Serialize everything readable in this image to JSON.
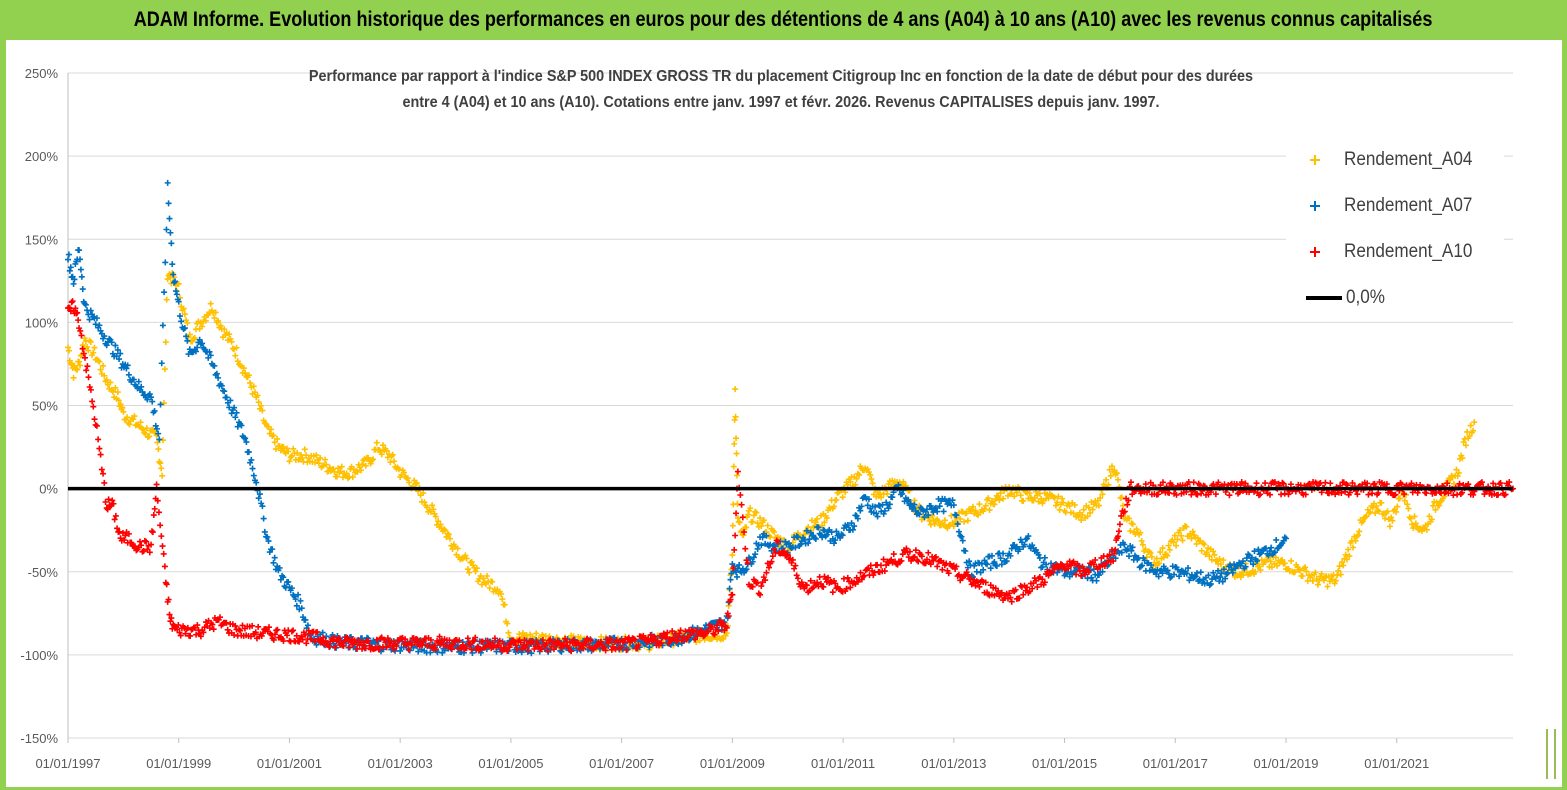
{
  "banner": {
    "title": "ADAM Informe. Evolution historique des performances en euros pour des détentions de 4 ans (A04) à 10 ans (A10) avec les revenus connus capitalisés",
    "background": "#92d050"
  },
  "chart_data": {
    "type": "scatter",
    "title_line1": "Performance par rapport à l'indice S&P 500 INDEX GROSS TR  du placement Citigroup Inc en fonction de la date de début pour des durées",
    "title_line2": "entre 4 (A04) et 10 ans (A10).  Cotations entre janv. 1997 et févr. 2026. Revenus  CAPITALISES depuis janv. 1997.",
    "ylim": [
      -150,
      250
    ],
    "y_ticks": [
      "250%",
      "200%",
      "150%",
      "100%",
      "50%",
      "0%",
      "-50%",
      "-100%",
      "-150%"
    ],
    "y_tick_values": [
      250,
      200,
      150,
      100,
      50,
      0,
      -50,
      -100,
      -150
    ],
    "x_range": [
      1997.0,
      2023.1
    ],
    "x_ticks": [
      "01/01/1997",
      "01/01/1999",
      "01/01/2001",
      "01/01/2003",
      "01/01/2005",
      "01/01/2007",
      "01/01/2009",
      "01/01/2011",
      "01/01/2013",
      "01/01/2015",
      "01/01/2017",
      "01/01/2019",
      "01/01/2021"
    ],
    "x_tick_values": [
      1997,
      1999,
      2001,
      2003,
      2005,
      2007,
      2009,
      2011,
      2013,
      2015,
      2017,
      2019,
      2021
    ],
    "grid": "horizontal",
    "legend_position": "top-right",
    "series": [
      {
        "name": "Rendement_A04",
        "color": "#ffc000",
        "x": [
          1997.0,
          1997.1,
          1997.2,
          1997.3,
          1997.5,
          1997.7,
          1997.9,
          1998.0,
          1998.2,
          1998.4,
          1998.6,
          1998.7,
          1998.8,
          1998.9,
          1999.0,
          1999.2,
          1999.4,
          1999.6,
          1999.8,
          2000.0,
          2000.2,
          2000.4,
          2000.6,
          2000.8,
          2001.0,
          2001.3,
          2001.6,
          2001.9,
          2002.1,
          2002.4,
          2002.6,
          2002.8,
          2003.0,
          2003.3,
          2003.6,
          2003.9,
          2004.2,
          2004.5,
          2004.8,
          2005.0,
          2005.5,
          2006.0,
          2006.5,
          2007.0,
          2007.5,
          2008.0,
          2008.5,
          2008.9,
          2009.0,
          2009.05,
          2009.1,
          2009.2,
          2009.3,
          2009.5,
          2009.8,
          2010.0,
          2010.3,
          2010.6,
          2010.9,
          2011.2,
          2011.4,
          2011.6,
          2011.8,
          2012.0,
          2012.2,
          2012.4,
          2012.7,
          2013.0,
          2013.3,
          2013.6,
          2014.0,
          2014.3,
          2014.6,
          2015.0,
          2015.3,
          2015.6,
          2015.9,
          2016.1,
          2016.3,
          2016.6,
          2016.9,
          2017.2,
          2017.5,
          2017.8,
          2018.1,
          2018.4,
          2018.7,
          2019.0,
          2019.3,
          2019.6,
          2019.9,
          2020.1,
          2020.3,
          2020.5,
          2020.7,
          2020.9,
          2021.1,
          2021.3,
          2021.5,
          2021.7,
          2021.9,
          2022.1,
          2022.25,
          2022.4
        ],
        "y": [
          85,
          70,
          75,
          90,
          80,
          65,
          55,
          45,
          40,
          35,
          30,
          10,
          130,
          125,
          120,
          90,
          100,
          110,
          95,
          85,
          70,
          55,
          35,
          25,
          20,
          20,
          15,
          10,
          10,
          15,
          25,
          20,
          10,
          0,
          -15,
          -30,
          -45,
          -55,
          -60,
          -90,
          -90,
          -92,
          -93,
          -93,
          -93,
          -90,
          -88,
          -87,
          -40,
          60,
          -20,
          -30,
          -15,
          -20,
          -30,
          -35,
          -25,
          -20,
          -5,
          5,
          15,
          -5,
          0,
          5,
          -5,
          -15,
          -20,
          -20,
          -15,
          -10,
          0,
          -5,
          -5,
          -10,
          -15,
          -10,
          15,
          -20,
          -25,
          -45,
          -35,
          -25,
          -35,
          -45,
          -50,
          -48,
          -45,
          -45,
          -50,
          -55,
          -55,
          -40,
          -25,
          -15,
          -10,
          -20,
          0,
          -20,
          -25,
          -10,
          0,
          10,
          30,
          40
        ]
      },
      {
        "name": "Rendement_A07",
        "color": "#0070c0",
        "x": [
          1997.0,
          1997.1,
          1997.2,
          1997.3,
          1997.5,
          1997.7,
          1997.9,
          1998.1,
          1998.3,
          1998.5,
          1998.65,
          1998.8,
          1998.9,
          1999.0,
          1999.2,
          1999.4,
          1999.6,
          1999.8,
          2000.0,
          2000.2,
          2000.4,
          2000.6,
          2000.8,
          2001.0,
          2001.2,
          2001.4,
          2001.6,
          2001.8,
          2002.0,
          2002.2,
          2002.4,
          2002.7,
          2003.0,
          2003.5,
          2004.0,
          2004.5,
          2005.0,
          2005.5,
          2006.0,
          2006.5,
          2007.0,
          2007.5,
          2008.0,
          2008.5,
          2008.9,
          2009.0,
          2009.1,
          2009.3,
          2009.5,
          2009.8,
          2010.0,
          2010.3,
          2010.6,
          2010.9,
          2011.2,
          2011.4,
          2011.6,
          2011.8,
          2012.0,
          2012.2,
          2012.4,
          2012.7,
          2013.0,
          2013.3,
          2013.6,
          2014.0,
          2014.3,
          2014.6,
          2015.0,
          2015.3,
          2015.6,
          2015.9,
          2016.1,
          2016.4,
          2016.7,
          2017.0,
          2017.3,
          2017.6,
          2017.9,
          2018.2,
          2018.5,
          2018.8,
          2019.0
        ],
        "y": [
          140,
          125,
          145,
          110,
          100,
          90,
          80,
          70,
          60,
          55,
          30,
          180,
          130,
          110,
          80,
          90,
          75,
          60,
          45,
          30,
          5,
          -30,
          -50,
          -60,
          -70,
          -90,
          -90,
          -92,
          -93,
          -93,
          -93,
          -94,
          -94,
          -95,
          -95,
          -95,
          -95,
          -95,
          -94,
          -94,
          -93,
          -92,
          -90,
          -85,
          -80,
          -45,
          -50,
          -45,
          -30,
          -35,
          -35,
          -30,
          -25,
          -30,
          -20,
          -5,
          -15,
          -10,
          0,
          -10,
          -15,
          -10,
          -10,
          -50,
          -45,
          -40,
          -30,
          -45,
          -50,
          -50,
          -52,
          -40,
          -35,
          -45,
          -50,
          -50,
          -52,
          -55,
          -52,
          -45,
          -40,
          -35,
          -30
        ]
      },
      {
        "name": "Rendement_A10",
        "color": "#ff0000",
        "x": [
          1997.0,
          1997.1,
          1997.2,
          1997.35,
          1997.5,
          1997.7,
          1997.8,
          1997.95,
          1998.1,
          1998.3,
          1998.5,
          1998.6,
          1998.75,
          1998.85,
          1998.95,
          1999.1,
          1999.4,
          1999.7,
          2000.0,
          2000.5,
          2001.0,
          2001.5,
          2002.0,
          2003.0,
          2004.0,
          2005.0,
          2006.0,
          2007.0,
          2007.5,
          2008.0,
          2008.5,
          2008.9,
          2009.0,
          2009.1,
          2009.3,
          2009.5,
          2009.8,
          2010.0,
          2010.3,
          2010.6,
          2010.9,
          2011.2,
          2011.5,
          2011.8,
          2012.1,
          2012.4,
          2012.7,
          2013.0,
          2013.3,
          2013.6,
          2014.0,
          2014.3,
          2014.6,
          2015.0,
          2015.3,
          2015.6,
          2015.9,
          2016.0,
          2016.2,
          2017.0,
          2018.0,
          2019.0,
          2020.0,
          2021.0,
          2022.0,
          2023.1
        ],
        "y": [
          105,
          110,
          100,
          70,
          40,
          -10,
          -10,
          -30,
          -30,
          -35,
          -35,
          0,
          -50,
          -80,
          -85,
          -85,
          -85,
          -80,
          -85,
          -87,
          -88,
          -90,
          -93,
          -93,
          -93,
          -94,
          -94,
          -94,
          -92,
          -88,
          -87,
          -82,
          -60,
          10,
          -55,
          -60,
          -35,
          -40,
          -60,
          -55,
          -60,
          -55,
          -50,
          -45,
          -40,
          -40,
          -45,
          -50,
          -55,
          -60,
          -65,
          -60,
          -55,
          -45,
          -50,
          -45,
          -40,
          -20,
          0,
          0,
          0,
          0,
          0,
          0,
          0,
          0
        ]
      }
    ],
    "reference_line": {
      "name": "0,0%",
      "value": 0,
      "color": "#000000"
    }
  }
}
